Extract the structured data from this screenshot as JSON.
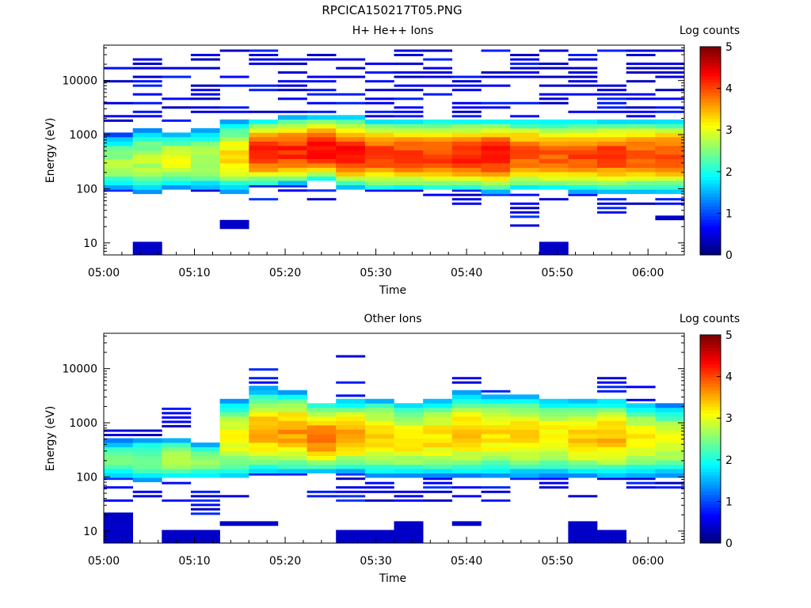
{
  "figure": {
    "filename": "RPCICA150217T05.PNG"
  },
  "chart_data": [
    {
      "type": "heatmap",
      "title": "H+ He++ Ions",
      "xlabel": "Time",
      "ylabel": "Energy (eV)",
      "x_ticks": [
        "05:00",
        "05:10",
        "05:20",
        "05:30",
        "05:40",
        "05:50",
        "06:00"
      ],
      "x_range_min": [
        0,
        64
      ],
      "y_scale": "log",
      "y_ticks": [
        "10",
        "100",
        "1000",
        "10000"
      ],
      "y_range_eV": [
        6,
        45000
      ],
      "colorbar": {
        "label": "Log counts",
        "ticks": [
          "0",
          "1",
          "2",
          "3",
          "4",
          "5"
        ],
        "range": [
          0,
          5
        ],
        "colormap": "jet"
      },
      "columns": [
        {
          "t": [
            0,
            3.2
          ],
          "core_lo": 90,
          "core_hi": 1000,
          "peak": 2.2,
          "tail_hi": 30000,
          "tail_lo": 65
        },
        {
          "t": [
            3.2,
            6.4
          ],
          "core_lo": 80,
          "core_hi": 1300,
          "peak": 2.3,
          "tail_hi": 35000,
          "tail_lo": 70,
          "low_patch": [
            6,
            11
          ]
        },
        {
          "t": [
            6.4,
            9.6
          ],
          "core_lo": 95,
          "core_hi": 1100,
          "peak": 2.6,
          "tail_hi": 40000,
          "tail_lo": 90
        },
        {
          "t": [
            9.6,
            12.8
          ],
          "core_lo": 90,
          "core_hi": 1300,
          "peak": 2.3,
          "tail_hi": 30000,
          "tail_lo": 85
        },
        {
          "t": [
            12.8,
            16
          ],
          "core_lo": 85,
          "core_hi": 1800,
          "peak": 2.8,
          "tail_hi": 40000,
          "tail_lo": 80,
          "low_patch": [
            17,
            27
          ]
        },
        {
          "t": [
            16,
            19.2
          ],
          "core_lo": 110,
          "core_hi": 2000,
          "peak": 3.7,
          "tail_hi": 40000,
          "tail_lo": 45
        },
        {
          "t": [
            19.2,
            22.4
          ],
          "core_lo": 120,
          "core_hi": 2200,
          "peak": 3.7,
          "tail_hi": 40000,
          "tail_lo": 80
        },
        {
          "t": [
            22.4,
            25.6
          ],
          "core_lo": 140,
          "core_hi": 2200,
          "peak": 3.9,
          "tail_hi": 40000,
          "tail_lo": 25
        },
        {
          "t": [
            25.6,
            28.8
          ],
          "core_lo": 100,
          "core_hi": 2200,
          "peak": 3.8,
          "tail_hi": 40000,
          "tail_lo": 80
        },
        {
          "t": [
            28.8,
            32
          ],
          "core_lo": 90,
          "core_hi": 2000,
          "peak": 3.6,
          "tail_hi": 40000,
          "tail_lo": 60
        },
        {
          "t": [
            32,
            35.2
          ],
          "core_lo": 90,
          "core_hi": 2000,
          "peak": 3.6,
          "tail_hi": 40000,
          "tail_lo": 80
        },
        {
          "t": [
            35.2,
            38.4
          ],
          "core_lo": 90,
          "core_hi": 2000,
          "peak": 3.6,
          "tail_hi": 40000,
          "tail_lo": 50
        },
        {
          "t": [
            38.4,
            41.6
          ],
          "core_lo": 90,
          "core_hi": 2000,
          "peak": 3.7,
          "tail_hi": 40000,
          "tail_lo": 35
        },
        {
          "t": [
            41.6,
            44.8
          ],
          "core_lo": 85,
          "core_hi": 2000,
          "peak": 3.8,
          "tail_hi": 40000,
          "tail_lo": 70
        },
        {
          "t": [
            44.8,
            48
          ],
          "core_lo": 90,
          "core_hi": 2000,
          "peak": 3.5,
          "tail_hi": 40000,
          "tail_lo": 20
        },
        {
          "t": [
            48,
            51.2
          ],
          "core_lo": 90,
          "core_hi": 2000,
          "peak": 3.4,
          "tail_hi": 40000,
          "tail_lo": 60,
          "low_patch": [
            6,
            11
          ]
        },
        {
          "t": [
            51.2,
            54.4
          ],
          "core_lo": 85,
          "core_hi": 2000,
          "peak": 3.5,
          "tail_hi": 40000,
          "tail_lo": 70
        },
        {
          "t": [
            54.4,
            57.6
          ],
          "core_lo": 85,
          "core_hi": 2000,
          "peak": 3.6,
          "tail_hi": 40000,
          "tail_lo": 28
        },
        {
          "t": [
            57.6,
            60.8
          ],
          "core_lo": 85,
          "core_hi": 2000,
          "peak": 3.5,
          "tail_hi": 40000,
          "tail_lo": 18
        },
        {
          "t": [
            60.8,
            64
          ],
          "core_lo": 85,
          "core_hi": 2000,
          "peak": 3.5,
          "tail_hi": 40000,
          "tail_lo": 25,
          "low_patch": [
            26,
            32
          ]
        }
      ]
    },
    {
      "type": "heatmap",
      "title": "Other Ions",
      "xlabel": "Time",
      "ylabel": "Energy (eV)",
      "x_ticks": [
        "05:00",
        "05:10",
        "05:20",
        "05:30",
        "05:40",
        "05:50",
        "06:00"
      ],
      "x_range_min": [
        0,
        64
      ],
      "y_scale": "log",
      "y_ticks": [
        "10",
        "100",
        "1000",
        "10000"
      ],
      "y_range_eV": [
        6,
        45000
      ],
      "colorbar": {
        "label": "Log counts",
        "ticks": [
          "0",
          "1",
          "2",
          "3",
          "4",
          "5"
        ],
        "range": [
          0,
          5
        ],
        "colormap": "jet"
      },
      "columns": [
        {
          "t": [
            0,
            3.2
          ],
          "core_lo": 90,
          "core_hi": 500,
          "peak": 2.0,
          "tail_hi": 800,
          "tail_lo": 30,
          "low_patch": [
            6,
            21
          ]
        },
        {
          "t": [
            3.2,
            6.4
          ],
          "core_lo": 80,
          "core_hi": 550,
          "peak": 2.0,
          "tail_hi": 900,
          "tail_lo": 40
        },
        {
          "t": [
            6.4,
            9.6
          ],
          "core_lo": 90,
          "core_hi": 550,
          "peak": 2.3,
          "tail_hi": 1800,
          "tail_lo": 20,
          "low_patch": [
            6,
            11
          ]
        },
        {
          "t": [
            9.6,
            12.8
          ],
          "core_lo": 90,
          "core_hi": 450,
          "peak": 2.2,
          "tail_hi": 450,
          "tail_lo": 20,
          "low_patch": [
            6,
            11
          ]
        },
        {
          "t": [
            12.8,
            16
          ],
          "core_lo": 90,
          "core_hi": 2800,
          "peak": 2.6,
          "tail_hi": 2800,
          "tail_lo": 35,
          "low_patch": [
            12,
            16
          ]
        },
        {
          "t": [
            16,
            19.2
          ],
          "core_lo": 110,
          "core_hi": 4500,
          "peak": 3.0,
          "tail_hi": 10000,
          "tail_lo": 60,
          "low_patch": [
            12,
            16
          ]
        },
        {
          "t": [
            19.2,
            22.4
          ],
          "core_lo": 110,
          "core_hi": 4000,
          "peak": 3.1,
          "tail_hi": 7500,
          "tail_lo": 80
        },
        {
          "t": [
            22.4,
            25.6
          ],
          "core_lo": 120,
          "core_hi": 2500,
          "peak": 3.3,
          "tail_hi": 2500,
          "tail_lo": 40
        },
        {
          "t": [
            25.6,
            28.8
          ],
          "core_lo": 120,
          "core_hi": 2800,
          "peak": 3.1,
          "tail_hi": 19000,
          "tail_lo": 30,
          "low_patch": [
            6,
            11
          ]
        },
        {
          "t": [
            28.8,
            32
          ],
          "core_lo": 100,
          "core_hi": 3000,
          "peak": 2.9,
          "tail_hi": 3000,
          "tail_lo": 35,
          "low_patch": [
            6,
            11
          ]
        },
        {
          "t": [
            32,
            35.2
          ],
          "core_lo": 100,
          "core_hi": 2500,
          "peak": 2.8,
          "tail_hi": 3000,
          "tail_lo": 30,
          "low_patch": [
            6,
            16
          ]
        },
        {
          "t": [
            35.2,
            38.4
          ],
          "core_lo": 100,
          "core_hi": 3000,
          "peak": 2.8,
          "tail_hi": 4000,
          "tail_lo": 30
        },
        {
          "t": [
            38.4,
            41.6
          ],
          "core_lo": 100,
          "core_hi": 4000,
          "peak": 2.9,
          "tail_hi": 7000,
          "tail_lo": 30,
          "low_patch": [
            12,
            16
          ]
        },
        {
          "t": [
            41.6,
            44.8
          ],
          "core_lo": 100,
          "core_hi": 3500,
          "peak": 2.8,
          "tail_hi": 4500,
          "tail_lo": 30
        },
        {
          "t": [
            44.8,
            48
          ],
          "core_lo": 100,
          "core_hi": 3500,
          "peak": 2.8,
          "tail_hi": 4000,
          "tail_lo": 25
        },
        {
          "t": [
            48,
            51.2
          ],
          "core_lo": 100,
          "core_hi": 3000,
          "peak": 2.7,
          "tail_hi": 3000,
          "tail_lo": 60
        },
        {
          "t": [
            51.2,
            54.4
          ],
          "core_lo": 100,
          "core_hi": 2800,
          "peak": 2.9,
          "tail_hi": 2800,
          "tail_lo": 30,
          "low_patch": [
            6,
            16
          ]
        },
        {
          "t": [
            54.4,
            57.6
          ],
          "core_lo": 95,
          "core_hi": 3000,
          "peak": 3.0,
          "tail_hi": 7500,
          "tail_lo": 50,
          "low_patch": [
            6,
            11
          ]
        },
        {
          "t": [
            57.6,
            60.8
          ],
          "core_lo": 100,
          "core_hi": 2500,
          "peak": 2.7,
          "tail_hi": 5000,
          "tail_lo": 60
        },
        {
          "t": [
            60.8,
            64
          ],
          "core_lo": 100,
          "core_hi": 2200,
          "peak": 2.6,
          "tail_hi": 2200,
          "tail_lo": 30
        }
      ]
    }
  ]
}
